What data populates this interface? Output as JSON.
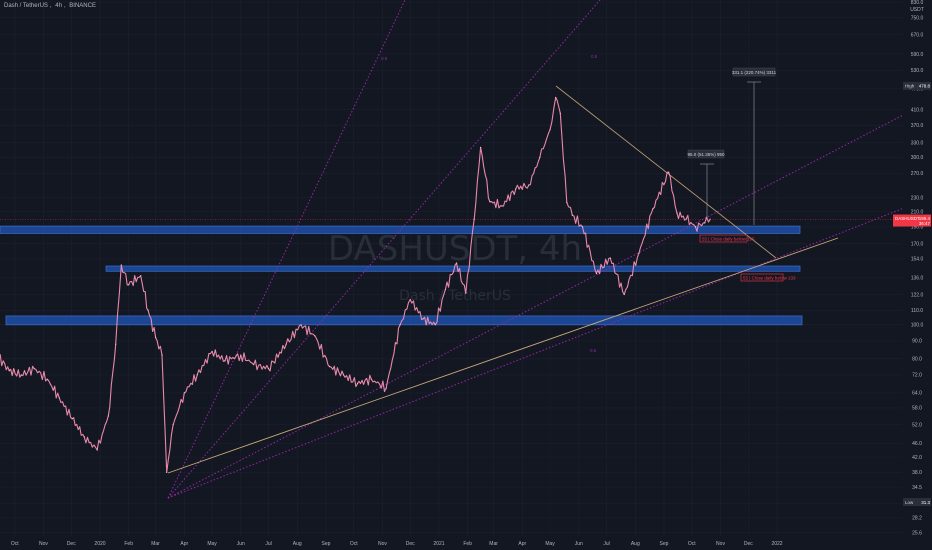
{
  "header": {
    "symbol_name": "Dash / TetherUS",
    "interval": "4h",
    "exchange": "BINANCE"
  },
  "watermark": {
    "ticker": "DASHUSDT, 4h",
    "name": "Dash / TetherUS"
  },
  "chart_data": {
    "type": "line",
    "x_ticks": [
      "Oct",
      "Nov",
      "Dec",
      "2020",
      "Feb",
      "Mar",
      "Apr",
      "May",
      "Jun",
      "Jul",
      "Aug",
      "Sep",
      "Oct",
      "Nov",
      "Dec",
      "2021",
      "Feb",
      "Mar",
      "Apr",
      "May",
      "Jun",
      "Jul",
      "Aug",
      "Sep",
      "Oct",
      "Nov",
      "Dec",
      "2022"
    ],
    "y_ticks": [
      23.3,
      25.6,
      28.2,
      31.0,
      34.5,
      38.0,
      42.0,
      46.0,
      52.0,
      58.0,
      64.0,
      72.0,
      80.0,
      90.0,
      100.0,
      110.0,
      122.0,
      136.0,
      154.0,
      170.0,
      190.0,
      210.0,
      230.0,
      270.0,
      300.0,
      330.0,
      370.0,
      410.0,
      470.0,
      530.0,
      590.0,
      670.0,
      750.0,
      830.0
    ],
    "y_top_label": "USDT",
    "scale": "log",
    "ylim": [
      23.3,
      830
    ],
    "series": [
      {
        "points": [
          [
            "2019-09-01",
            99
          ],
          [
            "2019-09-12",
            82
          ],
          [
            "2019-09-25",
            74
          ],
          [
            "2019-10-08",
            72
          ],
          [
            "2019-10-22",
            75
          ],
          [
            "2019-11-05",
            70
          ],
          [
            "2019-11-18",
            62
          ],
          [
            "2019-12-02",
            54
          ],
          [
            "2019-12-15",
            48
          ],
          [
            "2019-12-29",
            44
          ],
          [
            "2020-01-10",
            55
          ],
          [
            "2020-01-18",
            88
          ],
          [
            "2020-01-24",
            148
          ],
          [
            "2020-02-01",
            130
          ],
          [
            "2020-02-14",
            138
          ],
          [
            "2020-02-22",
            110
          ],
          [
            "2020-03-01",
            92
          ],
          [
            "2020-03-08",
            82
          ],
          [
            "2020-03-13",
            38
          ],
          [
            "2020-03-20",
            52
          ],
          [
            "2020-04-01",
            64
          ],
          [
            "2020-04-15",
            72
          ],
          [
            "2020-05-01",
            84
          ],
          [
            "2020-05-15",
            79
          ],
          [
            "2020-06-01",
            82
          ],
          [
            "2020-06-15",
            77
          ],
          [
            "2020-07-01",
            75
          ],
          [
            "2020-07-20",
            88
          ],
          [
            "2020-08-05",
            100
          ],
          [
            "2020-08-20",
            93
          ],
          [
            "2020-09-05",
            76
          ],
          [
            "2020-09-20",
            72
          ],
          [
            "2020-10-05",
            68
          ],
          [
            "2020-10-20",
            70
          ],
          [
            "2020-11-05",
            66
          ],
          [
            "2020-11-20",
            100
          ],
          [
            "2020-12-01",
            118
          ],
          [
            "2020-12-15",
            104
          ],
          [
            "2020-12-28",
            100
          ],
          [
            "2021-01-08",
            126
          ],
          [
            "2021-01-20",
            150
          ],
          [
            "2021-01-30",
            123
          ],
          [
            "2021-02-08",
            200
          ],
          [
            "2021-02-15",
            320
          ],
          [
            "2021-02-25",
            224
          ],
          [
            "2021-03-10",
            218
          ],
          [
            "2021-03-25",
            244
          ],
          [
            "2021-04-08",
            250
          ],
          [
            "2021-04-20",
            300
          ],
          [
            "2021-05-01",
            360
          ],
          [
            "2021-05-07",
            444
          ],
          [
            "2021-05-12",
            400
          ],
          [
            "2021-05-19",
            223
          ],
          [
            "2021-05-25",
            205
          ],
          [
            "2021-06-05",
            190
          ],
          [
            "2021-06-20",
            140
          ],
          [
            "2021-07-05",
            155
          ],
          [
            "2021-07-20",
            122
          ],
          [
            "2021-08-05",
            160
          ],
          [
            "2021-08-20",
            214
          ],
          [
            "2021-09-06",
            272
          ],
          [
            "2021-09-15",
            208
          ],
          [
            "2021-09-25",
            200
          ],
          [
            "2021-10-05",
            190
          ],
          [
            "2021-10-15",
            195
          ],
          [
            "2021-10-21",
            200
          ]
        ]
      }
    ],
    "annotations": {
      "high_label": "High",
      "high_value": "478.8",
      "low_label": "Low",
      "low_value": "31.3",
      "current_symbol": "DASHUSDT",
      "current_price": "199.4",
      "current_countdown": "36:47",
      "fib_label_1": "0.5",
      "fib_label_2": "0.5",
      "fib_label_3": "0.5",
      "measure_1": "95.0 (51.35%) 950",
      "measure_2": "331.1 (220.74%) 3311",
      "alert_1": "55 | Close daily below 195",
      "alert_2": "55 | Close daily below 133"
    },
    "colors": {
      "background": "#131722",
      "price": "#f48fb1",
      "zone": "#1e4fa8",
      "zone_edge": "#3c78d8",
      "trendline": "#c8a67a",
      "fib": "#9c27b0",
      "current_tag": "#f23645",
      "alert": "#f23645"
    }
  }
}
